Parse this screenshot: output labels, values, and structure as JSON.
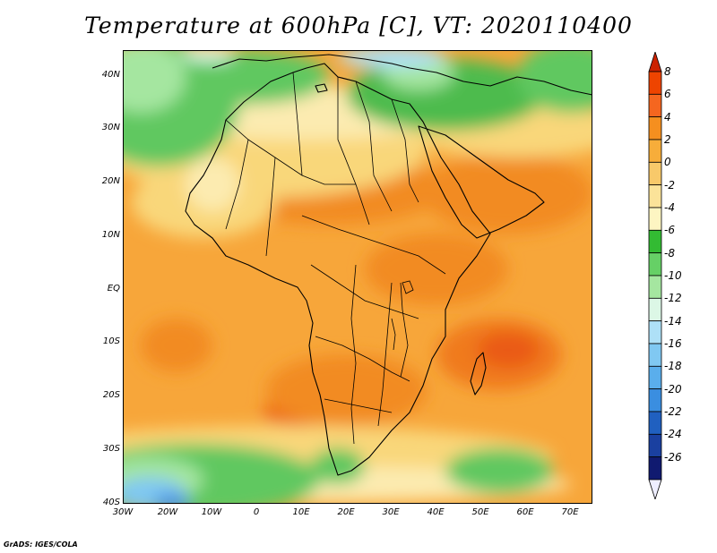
{
  "title": "Temperature at 600hPa [C], VT: 2020110400",
  "footer": "GrADS: IGES/COLA",
  "chart_data": {
    "type": "heatmap",
    "variable": "Temperature at 600hPa",
    "units": "C",
    "valid_time": "2020110400",
    "x_axis": {
      "min": -30,
      "max": 75,
      "ticks": [
        -30,
        -20,
        -10,
        0,
        10,
        20,
        30,
        40,
        50,
        60,
        70
      ],
      "tick_labels": [
        "30W",
        "20W",
        "10W",
        "0",
        "10E",
        "20E",
        "30E",
        "40E",
        "50E",
        "60E",
        "70E"
      ]
    },
    "y_axis": {
      "min": -40,
      "max": 45,
      "ticks": [
        40,
        30,
        20,
        10,
        0,
        -10,
        -20,
        -30,
        -40
      ],
      "tick_labels": [
        "40N",
        "30N",
        "20N",
        "10N",
        "EQ",
        "10S",
        "20S",
        "30S",
        "40S"
      ]
    },
    "colorbar": {
      "levels": [
        "8",
        "6",
        "4",
        "2",
        "0",
        "-2",
        "-4",
        "-6",
        "-8",
        "-10",
        "-12",
        "-14",
        "-16",
        "-18",
        "-20",
        "-22",
        "-24",
        "-26"
      ],
      "colors": [
        "#cc2200",
        "#ee4400",
        "#f5661f",
        "#f58f1f",
        "#f7ad3a",
        "#f8c96a",
        "#fbe399",
        "#fdf5c2",
        "#33bb33",
        "#66d066",
        "#a5e6a0",
        "#dcf7e6",
        "#aee0f7",
        "#80c8f2",
        "#5aaeec",
        "#3a8ee0",
        "#2060c0",
        "#1a40a0",
        "#101a70",
        "#eeeeff"
      ]
    },
    "regions": [
      {
        "area": "north Atlantic and Mediterranean margin",
        "range": "-8 to -4"
      },
      {
        "area": "Sahara and north Africa",
        "range": "-2 to 0"
      },
      {
        "area": "Sahel and Arabian Peninsula",
        "range": "2 to 4"
      },
      {
        "area": "equatorial Africa and tropical Atlantic",
        "range": "2 to 4"
      },
      {
        "area": "southwest Indian Ocean near Madagascar",
        "range": "4 to 6"
      },
      {
        "area": "southern Atlantic at 35S to 40S",
        "range": "-12 to -6"
      }
    ]
  }
}
